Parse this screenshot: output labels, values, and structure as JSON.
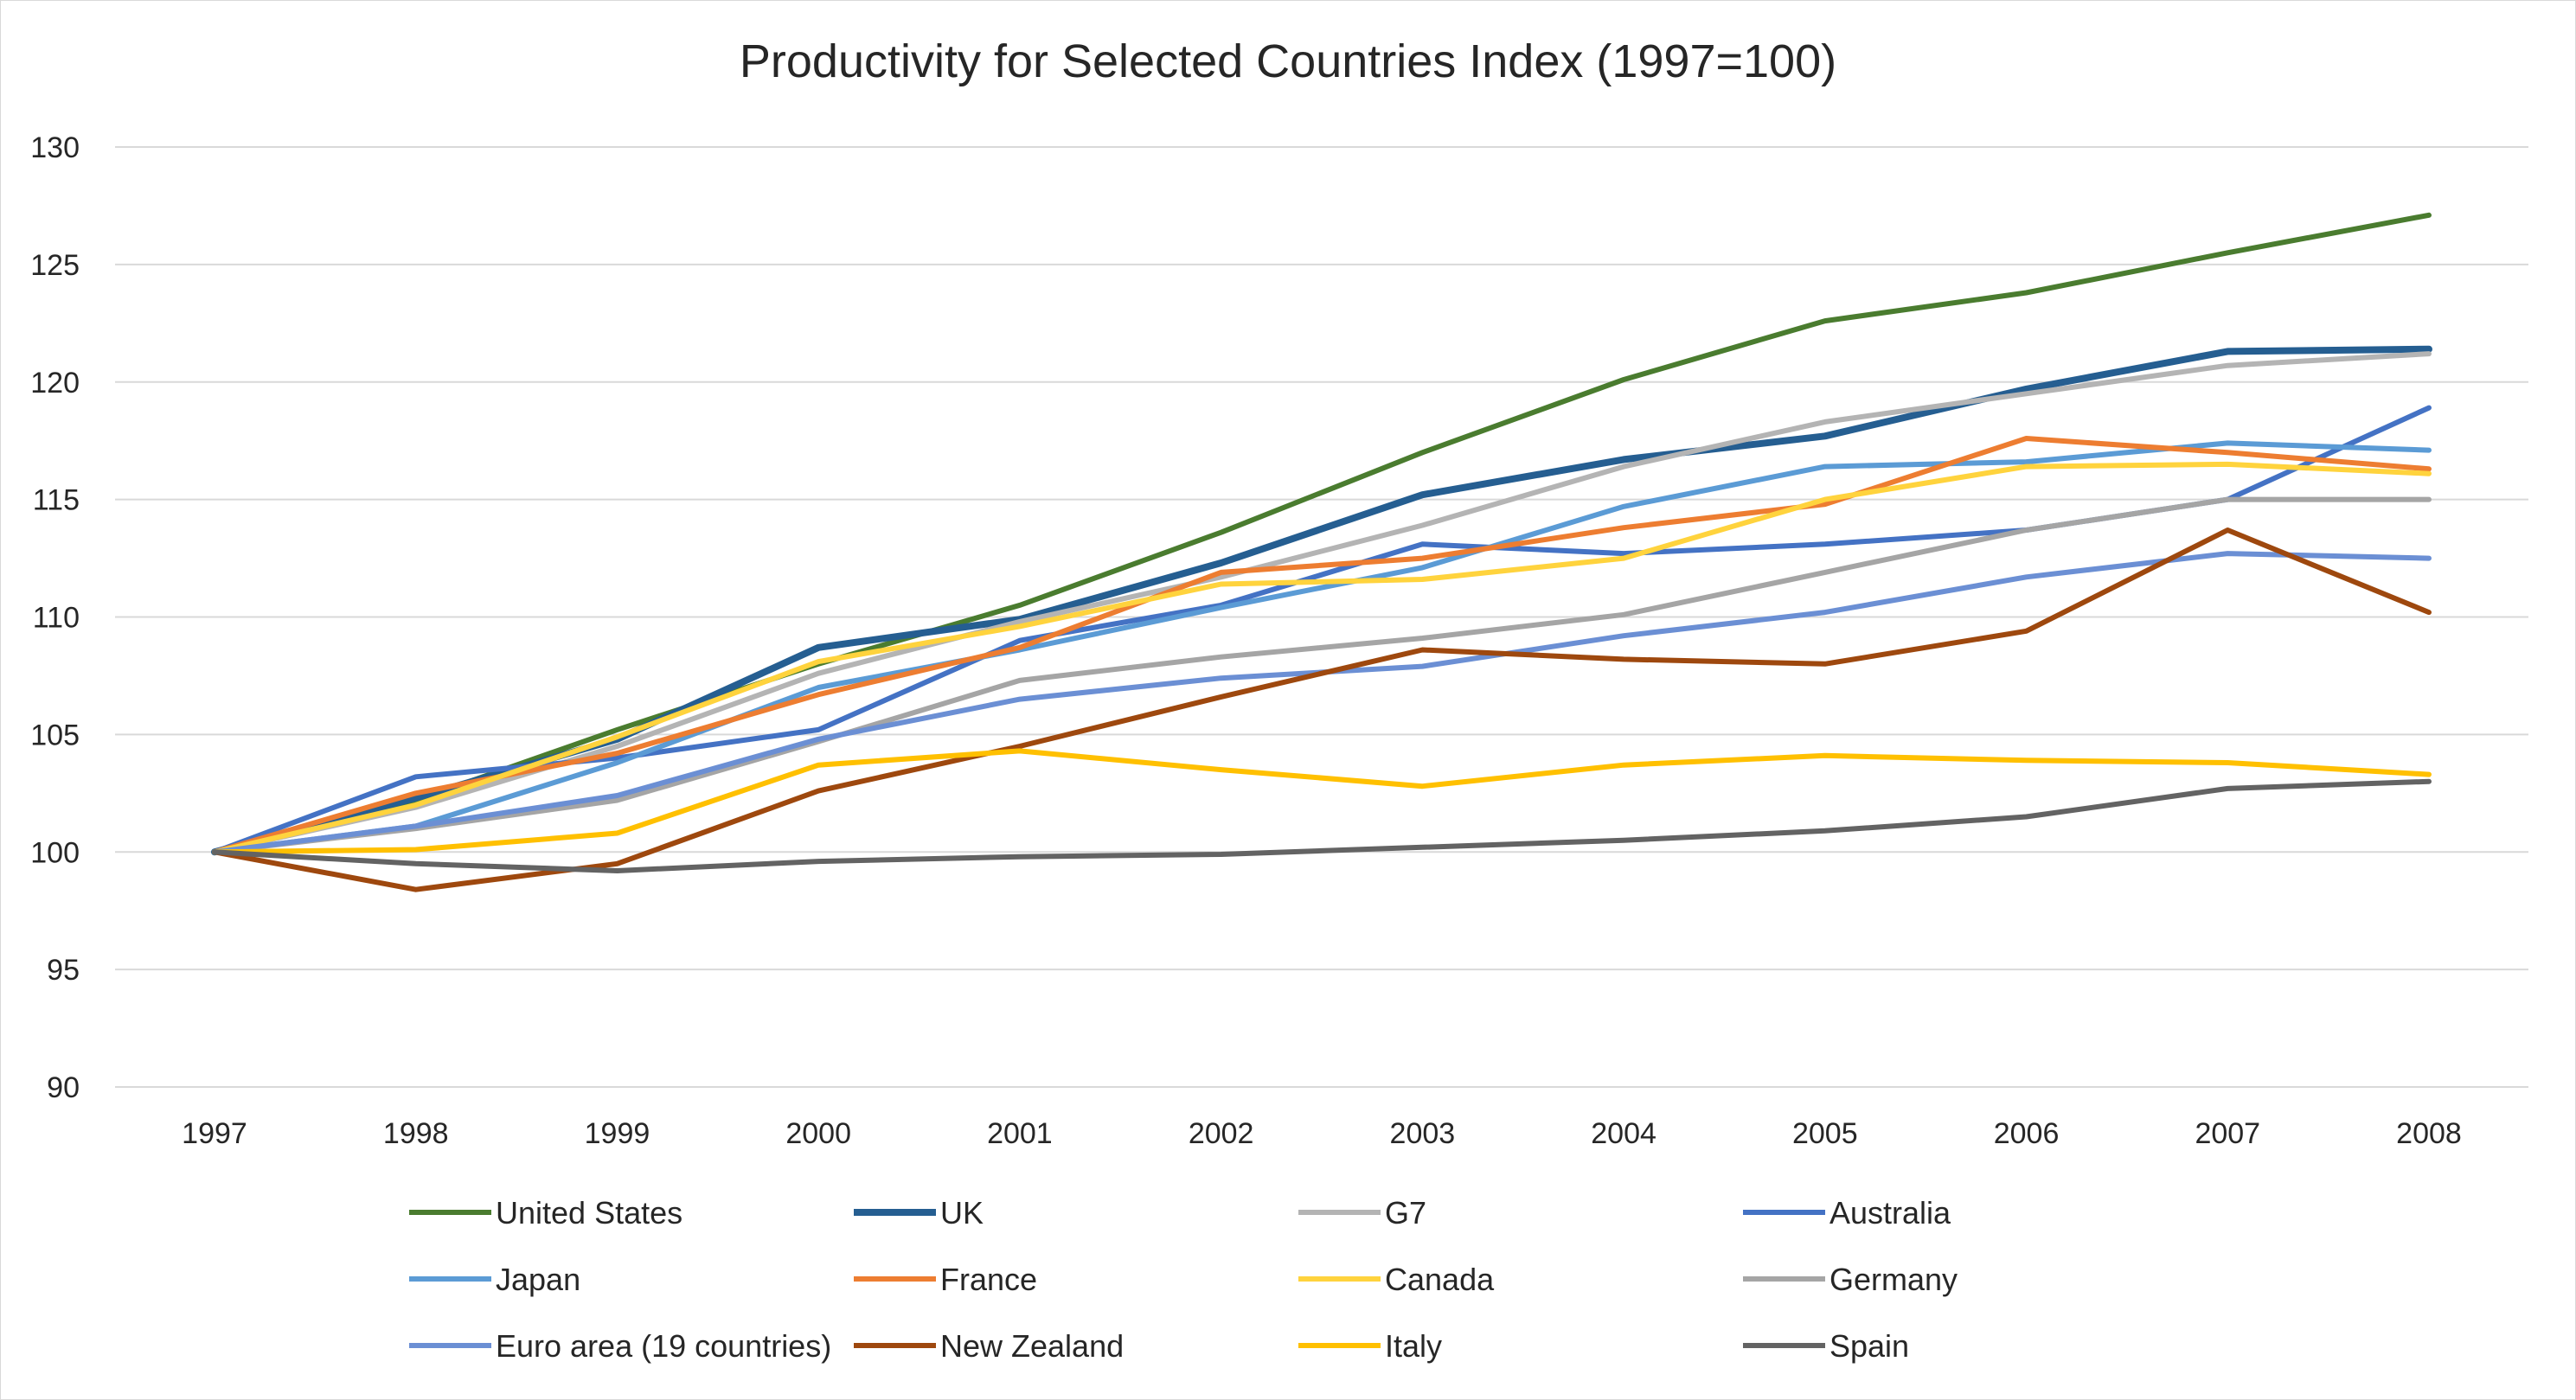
{
  "chart_data": {
    "type": "line",
    "title": "Productivity for Selected Countries Index (1997=100)",
    "xlabel": "",
    "ylabel": "",
    "x": [
      "1997",
      "1998",
      "1999",
      "2000",
      "2001",
      "2002",
      "2003",
      "2004",
      "2005",
      "2006",
      "2007",
      "2008"
    ],
    "ylim": [
      90,
      130
    ],
    "yticks": [
      90,
      95,
      100,
      105,
      110,
      115,
      120,
      125,
      130
    ],
    "grid": "horizontal",
    "legend_position": "bottom",
    "series": [
      {
        "name": "United States",
        "color": "#4a7c2f",
        "width": 6,
        "values": [
          100,
          102.2,
          105.2,
          108.0,
          110.5,
          113.6,
          117.0,
          120.1,
          122.6,
          123.8,
          125.5,
          127.1
        ]
      },
      {
        "name": "UK",
        "color": "#255e91",
        "width": 8,
        "values": [
          100,
          102.3,
          104.8,
          108.7,
          109.9,
          112.3,
          115.2,
          116.7,
          117.7,
          119.7,
          121.3,
          121.4
        ]
      },
      {
        "name": "G7",
        "color": "#b4b4b4",
        "width": 6,
        "values": [
          100,
          101.9,
          104.5,
          107.6,
          109.8,
          111.7,
          113.9,
          116.4,
          118.3,
          119.5,
          120.7,
          121.2
        ]
      },
      {
        "name": "Australia",
        "color": "#4472c4",
        "width": 6,
        "values": [
          100,
          103.2,
          104.0,
          105.2,
          109.0,
          110.5,
          113.1,
          112.7,
          113.1,
          113.7,
          115.0,
          118.9
        ]
      },
      {
        "name": "Japan",
        "color": "#5b9bd5",
        "width": 6,
        "values": [
          100,
          101.1,
          103.8,
          107.0,
          108.6,
          110.4,
          112.1,
          114.7,
          116.4,
          116.6,
          117.4,
          117.1
        ]
      },
      {
        "name": "France",
        "color": "#ed7d31",
        "width": 6,
        "values": [
          100,
          102.5,
          104.2,
          106.7,
          108.7,
          111.9,
          112.5,
          113.8,
          114.8,
          117.6,
          117.0,
          116.3
        ]
      },
      {
        "name": "Canada",
        "color": "#ffd33d",
        "width": 6,
        "values": [
          100,
          102.0,
          104.9,
          108.1,
          109.6,
          111.4,
          111.6,
          112.5,
          115.0,
          116.4,
          116.5,
          116.1
        ]
      },
      {
        "name": "Germany",
        "color": "#a5a5a5",
        "width": 6,
        "values": [
          100,
          101.0,
          102.2,
          104.7,
          107.3,
          108.3,
          109.1,
          110.1,
          111.9,
          113.7,
          115.0,
          115.0
        ]
      },
      {
        "name": "Euro area (19 countries)",
        "color": "#6b8fd4",
        "width": 6,
        "values": [
          100,
          101.1,
          102.4,
          104.8,
          106.5,
          107.4,
          107.9,
          109.2,
          110.2,
          111.7,
          112.7,
          112.5
        ]
      },
      {
        "name": "New Zealand",
        "color": "#9e480e",
        "width": 6,
        "values": [
          100,
          98.4,
          99.5,
          102.6,
          104.5,
          106.6,
          108.6,
          108.2,
          108.0,
          109.4,
          113.7,
          110.2
        ]
      },
      {
        "name": "Italy",
        "color": "#ffc000",
        "width": 6,
        "values": [
          100,
          100.1,
          100.8,
          103.7,
          104.3,
          103.5,
          102.8,
          103.7,
          104.1,
          103.9,
          103.8,
          103.3
        ]
      },
      {
        "name": "Spain",
        "color": "#636363",
        "width": 6,
        "values": [
          100,
          99.5,
          99.2,
          99.6,
          99.8,
          99.9,
          100.2,
          100.5,
          100.9,
          101.5,
          102.7,
          103.0
        ]
      }
    ]
  }
}
